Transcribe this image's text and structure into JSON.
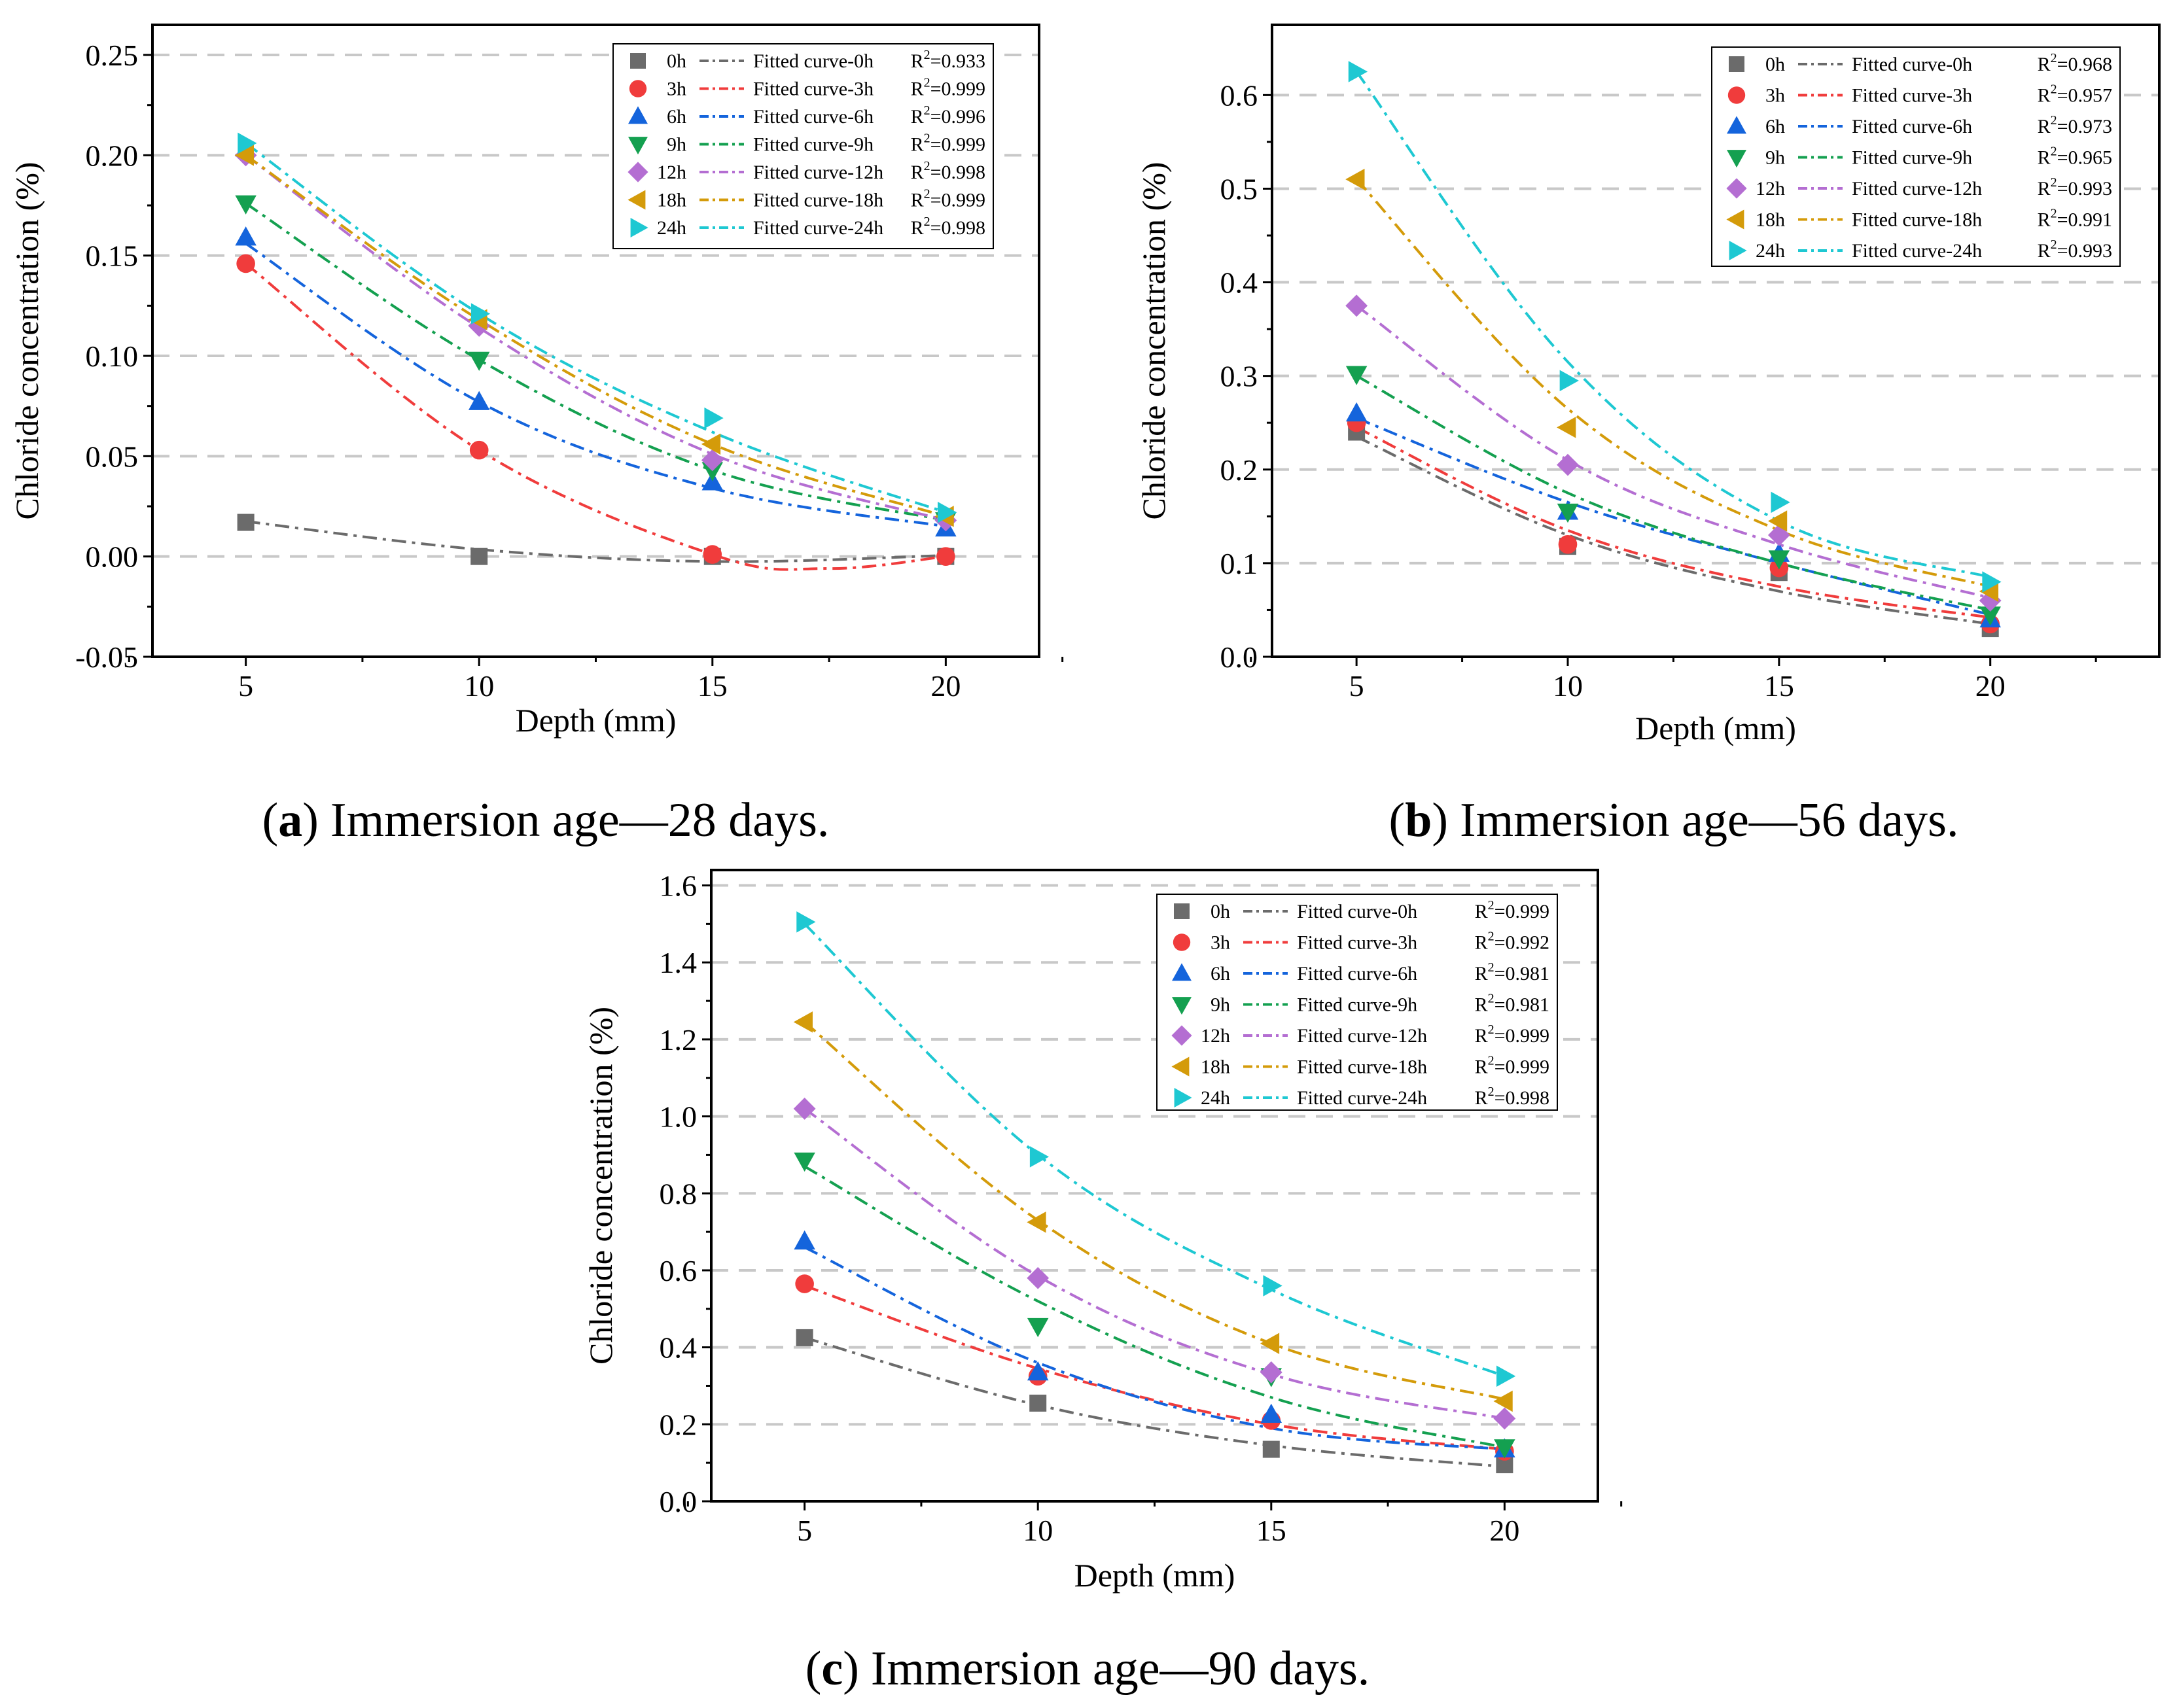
{
  "figure": {
    "panels": [
      {
        "id": "a",
        "caption_letter": "a",
        "caption_text": "Immersion age—28 days.",
        "caption_open": "(",
        "caption_close": ")",
        "chart_data_index": 0
      },
      {
        "id": "b",
        "caption_letter": "b",
        "caption_text": "Immersion age—56 days.",
        "caption_open": "(",
        "caption_close": ")",
        "chart_data_index": 1
      },
      {
        "id": "c",
        "caption_letter": "c",
        "caption_text": "Immersion age—90 days.",
        "caption_open": "(",
        "caption_close": ")",
        "chart_data_index": 2
      }
    ]
  },
  "styles": {
    "series_colors": {
      "0h": "#6b6b6b",
      "3h": "#f03c3c",
      "6h": "#1464dc",
      "9h": "#14a050",
      "12h": "#b46ed2",
      "18h": "#d49b0a",
      "24h": "#1ec8d2"
    },
    "series_markers": {
      "0h": "square",
      "3h": "circle",
      "6h": "triangle-up",
      "9h": "triangle-down",
      "12h": "diamond",
      "18h": "triangle-left",
      "24h": "triangle-right"
    },
    "grid_color": "#c8c8c8"
  },
  "chart_data": [
    {
      "type": "scatter",
      "title": "",
      "xlabel": "Depth (mm)",
      "ylabel": "Chloride concentration (%)",
      "xlim": [
        3,
        22
      ],
      "ylim": [
        -0.05,
        0.265
      ],
      "xticks": [
        5,
        10,
        15,
        20
      ],
      "xtick_labels": [
        "5",
        "10",
        "15",
        "20"
      ],
      "yticks": [
        -0.05,
        0.0,
        0.05,
        0.1,
        0.15,
        0.2,
        0.25
      ],
      "ytick_labels": [
        "-0.05",
        "0.00",
        "0.05",
        "0.10",
        "0.15",
        "0.20",
        "0.25"
      ],
      "grid": true,
      "legend_position": "top-right",
      "x": [
        5,
        10,
        15,
        20
      ],
      "series": [
        {
          "name": "0h",
          "values": [
            0.017,
            0.0,
            0.0,
            0.0
          ],
          "fit_label": "Fitted curve-0h",
          "r2_prefix": "R",
          "r2_sup": "2",
          "r2_value": "=0.933",
          "fit": [
            0.0175,
            0.0035,
            -0.0025,
            0.0005
          ]
        },
        {
          "name": "3h",
          "values": [
            0.146,
            0.053,
            0.001,
            0.0
          ],
          "fit_label": "Fitted curve-3h",
          "r2_prefix": "R",
          "r2_sup": "2",
          "r2_value": "=0.999",
          "fit": [
            0.146,
            0.053,
            0.001,
            0.0
          ],
          "fit_dip": {
            "x": 17.5,
            "y": -0.006
          }
        },
        {
          "name": "6h",
          "values": [
            0.159,
            0.077,
            0.037,
            0.014
          ],
          "fit_label": "Fitted curve-6h",
          "r2_prefix": "R",
          "r2_sup": "2",
          "r2_value": "=0.996",
          "fit": [
            0.156,
            0.077,
            0.034,
            0.015
          ]
        },
        {
          "name": "9h",
          "values": [
            0.176,
            0.098,
            0.043,
            0.018
          ],
          "fit_label": "Fitted curve-9h",
          "r2_prefix": "R",
          "r2_sup": "2",
          "r2_value": "=0.999",
          "fit": [
            0.176,
            0.098,
            0.043,
            0.018
          ]
        },
        {
          "name": "12h",
          "values": [
            0.2,
            0.115,
            0.048,
            0.018
          ],
          "fit_label": "Fitted curve-12h",
          "r2_prefix": "R",
          "r2_sup": "2",
          "r2_value": "=0.998",
          "fit": [
            0.2,
            0.114,
            0.051,
            0.018
          ]
        },
        {
          "name": "18h",
          "values": [
            0.2,
            0.118,
            0.056,
            0.02
          ],
          "fit_label": "Fitted curve-18h",
          "r2_prefix": "R",
          "r2_sup": "2",
          "r2_value": "=0.999",
          "fit": [
            0.2,
            0.118,
            0.056,
            0.02
          ]
        },
        {
          "name": "24h",
          "values": [
            0.206,
            0.121,
            0.069,
            0.022
          ],
          "fit_label": "Fitted curve-24h",
          "r2_prefix": "R",
          "r2_sup": "2",
          "r2_value": "=0.998",
          "fit": [
            0.206,
            0.121,
            0.062,
            0.022
          ]
        }
      ]
    },
    {
      "type": "scatter",
      "title": "",
      "xlabel": "Depth (mm)",
      "ylabel": "Chloride concentration (%)",
      "xlim": [
        3,
        24
      ],
      "ylim": [
        0.0,
        0.675
      ],
      "xticks": [
        5,
        10,
        15,
        20
      ],
      "xtick_labels": [
        "5",
        "10",
        "15",
        "20"
      ],
      "yticks": [
        0.0,
        0.1,
        0.2,
        0.3,
        0.4,
        0.5,
        0.6
      ],
      "ytick_labels": [
        "0.0",
        "0.1",
        "0.2",
        "0.3",
        "0.4",
        "0.5",
        "0.6"
      ],
      "grid": true,
      "legend_position": "top-right",
      "x": [
        5,
        10,
        15,
        20
      ],
      "series": [
        {
          "name": "0h",
          "values": [
            0.24,
            0.118,
            0.09,
            0.03
          ],
          "fit_label": "Fitted curve-0h",
          "r2_prefix": "R",
          "r2_sup": "2",
          "r2_value": "=0.968",
          "fit": [
            0.235,
            0.13,
            0.07,
            0.035
          ]
        },
        {
          "name": "3h",
          "values": [
            0.25,
            0.12,
            0.095,
            0.035
          ],
          "fit_label": "Fitted curve-3h",
          "r2_prefix": "R",
          "r2_sup": "2",
          "r2_value": "=0.957",
          "fit": [
            0.245,
            0.135,
            0.075,
            0.042
          ]
        },
        {
          "name": "6h",
          "values": [
            0.26,
            0.155,
            0.11,
            0.04
          ],
          "fit_label": "Fitted curve-6h",
          "r2_prefix": "R",
          "r2_sup": "2",
          "r2_value": "=0.973",
          "fit": [
            0.255,
            0.165,
            0.1,
            0.045
          ]
        },
        {
          "name": "9h",
          "values": [
            0.302,
            0.155,
            0.105,
            0.045
          ],
          "fit_label": "Fitted curve-9h",
          "r2_prefix": "R",
          "r2_sup": "2",
          "r2_value": "=0.965",
          "fit": [
            0.3,
            0.175,
            0.1,
            0.05
          ]
        },
        {
          "name": "12h",
          "values": [
            0.375,
            0.205,
            0.13,
            0.06
          ],
          "fit_label": "Fitted curve-12h",
          "r2_prefix": "R",
          "r2_sup": "2",
          "r2_value": "=0.993",
          "fit": [
            0.375,
            0.21,
            0.12,
            0.063
          ]
        },
        {
          "name": "18h",
          "values": [
            0.51,
            0.245,
            0.145,
            0.07
          ],
          "fit_label": "Fitted curve-18h",
          "r2_prefix": "R",
          "r2_sup": "2",
          "r2_value": "=0.991",
          "fit": [
            0.51,
            0.265,
            0.135,
            0.075
          ]
        },
        {
          "name": "24h",
          "values": [
            0.625,
            0.295,
            0.165,
            0.08
          ],
          "fit_label": "Fitted curve-24h",
          "r2_prefix": "R",
          "r2_sup": "2",
          "r2_value": "=0.993",
          "fit": [
            0.625,
            0.315,
            0.145,
            0.085
          ]
        }
      ]
    },
    {
      "type": "scatter",
      "title": "",
      "xlabel": "Depth (mm)",
      "ylabel": "Chloride concentration (%)",
      "xlim": [
        3,
        22
      ],
      "ylim": [
        0.0,
        1.64
      ],
      "xticks": [
        5,
        10,
        15,
        20
      ],
      "xtick_labels": [
        "5",
        "10",
        "15",
        "20"
      ],
      "yticks": [
        0.0,
        0.2,
        0.4,
        0.6,
        0.8,
        1.0,
        1.2,
        1.4,
        1.6
      ],
      "ytick_labels": [
        "0.0",
        "0.2",
        "0.4",
        "0.6",
        "0.8",
        "1.0",
        "1.2",
        "1.4",
        "1.6"
      ],
      "grid": true,
      "legend_position": "top-right",
      "x": [
        5,
        10,
        15,
        20
      ],
      "series": [
        {
          "name": "0h",
          "values": [
            0.425,
            0.255,
            0.135,
            0.095
          ],
          "fit_label": "Fitted curve-0h",
          "r2_prefix": "R",
          "r2_sup": "2",
          "r2_value": "=0.999",
          "fit": [
            0.425,
            0.25,
            0.145,
            0.09
          ]
        },
        {
          "name": "3h",
          "values": [
            0.565,
            0.325,
            0.21,
            0.13
          ],
          "fit_label": "Fitted curve-3h",
          "r2_prefix": "R",
          "r2_sup": "2",
          "r2_value": "=0.992",
          "fit": [
            0.56,
            0.345,
            0.2,
            0.135
          ]
        },
        {
          "name": "6h",
          "values": [
            0.675,
            0.335,
            0.225,
            0.135
          ],
          "fit_label": "Fitted curve-6h",
          "r2_prefix": "R",
          "r2_sup": "2",
          "r2_value": "=0.981",
          "fit": [
            0.66,
            0.36,
            0.19,
            0.135
          ]
        },
        {
          "name": "9h",
          "values": [
            0.885,
            0.455,
            0.325,
            0.14
          ],
          "fit_label": "Fitted curve-9h",
          "r2_prefix": "R",
          "r2_sup": "2",
          "r2_value": "=0.981",
          "fit": [
            0.87,
            0.52,
            0.27,
            0.14
          ]
        },
        {
          "name": "12h",
          "values": [
            1.02,
            0.58,
            0.335,
            0.215
          ],
          "fit_label": "Fitted curve-12h",
          "r2_prefix": "R",
          "r2_sup": "2",
          "r2_value": "=0.999",
          "fit": [
            1.02,
            0.585,
            0.33,
            0.215
          ]
        },
        {
          "name": "18h",
          "values": [
            1.245,
            0.725,
            0.41,
            0.26
          ],
          "fit_label": "Fitted curve-18h",
          "r2_prefix": "R",
          "r2_sup": "2",
          "r2_value": "=0.999",
          "fit": [
            1.245,
            0.73,
            0.41,
            0.265
          ]
        },
        {
          "name": "24h",
          "values": [
            1.505,
            0.895,
            0.56,
            0.325
          ],
          "fit_label": "Fitted curve-24h",
          "r2_prefix": "R",
          "r2_sup": "2",
          "r2_value": "=0.998",
          "fit": [
            1.5,
            0.9,
            0.55,
            0.325
          ]
        }
      ]
    }
  ]
}
